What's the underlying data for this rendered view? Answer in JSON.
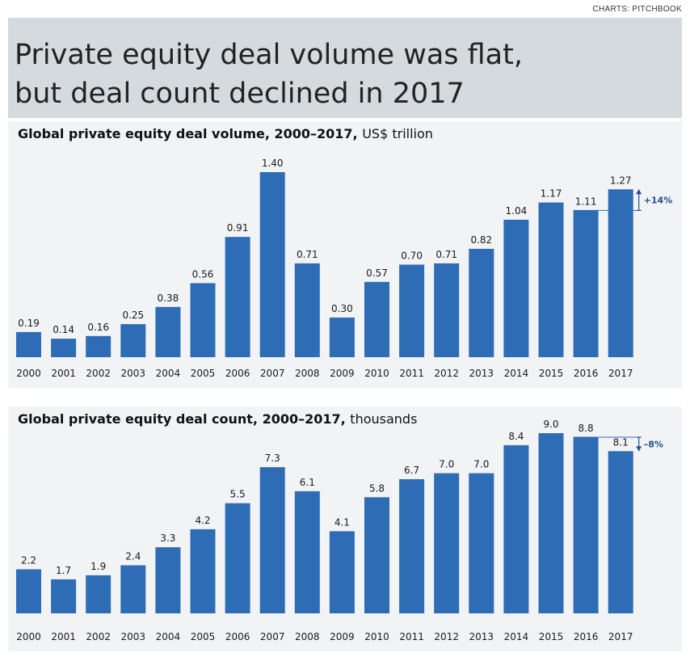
{
  "credit": "CHARTS: PITCHBOOK",
  "headline": {
    "line1": "Private equity deal volume was flat,",
    "line2": "but deal count declined in 2017"
  },
  "chart_data": [
    {
      "type": "bar",
      "title": "Global private equity deal volume, 2000–2017,",
      "unit": "US$ trillion",
      "categories": [
        "2000",
        "2001",
        "2002",
        "2003",
        "2004",
        "2005",
        "2006",
        "2007",
        "2008",
        "2009",
        "2010",
        "2011",
        "2012",
        "2013",
        "2014",
        "2015",
        "2016",
        "2017"
      ],
      "values": [
        0.19,
        0.14,
        0.16,
        0.25,
        0.38,
        0.56,
        0.91,
        1.4,
        0.71,
        0.3,
        0.57,
        0.7,
        0.71,
        0.82,
        1.04,
        1.17,
        1.11,
        1.27
      ],
      "labels": [
        "0.19",
        "0.14",
        "0.16",
        "0.25",
        "0.38",
        "0.56",
        "0.91",
        "1.40",
        "0.71",
        "0.30",
        "0.57",
        "0.70",
        "0.71",
        "0.82",
        "1.04",
        "1.17",
        "1.11",
        "1.27"
      ],
      "annotation": {
        "text": "+14%",
        "direction": "up"
      },
      "color": "#2e6cb6",
      "ylim": [
        0,
        1.4
      ]
    },
    {
      "type": "bar",
      "title": "Global private equity deal count, 2000–2017,",
      "unit": "thousands",
      "categories": [
        "2000",
        "2001",
        "2002",
        "2003",
        "2004",
        "2005",
        "2006",
        "2007",
        "2008",
        "2009",
        "2010",
        "2011",
        "2012",
        "2013",
        "2014",
        "2015",
        "2016",
        "2017"
      ],
      "values": [
        2.2,
        1.7,
        1.9,
        2.4,
        3.3,
        4.2,
        5.5,
        7.3,
        6.1,
        4.1,
        5.8,
        6.7,
        7.0,
        7.0,
        8.4,
        9.0,
        8.8,
        8.1
      ],
      "labels": [
        "2.2",
        "1.7",
        "1.9",
        "2.4",
        "3.3",
        "4.2",
        "5.5",
        "7.3",
        "6.1",
        "4.1",
        "5.8",
        "6.7",
        "7.0",
        "7.0",
        "8.4",
        "9.0",
        "8.8",
        "8.1"
      ],
      "annotation": {
        "text": "–8%",
        "direction": "down"
      },
      "color": "#2e6cb6",
      "ylim": [
        0,
        9.0
      ]
    }
  ]
}
